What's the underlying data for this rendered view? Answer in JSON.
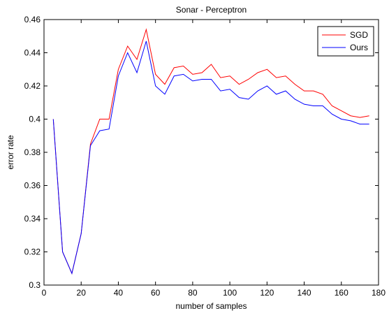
{
  "chart_data": {
    "type": "line",
    "title": "Sonar - Perceptron",
    "xlabel": "number of samples",
    "ylabel": "error rate",
    "xlim": [
      0,
      180
    ],
    "ylim": [
      0.3,
      0.46
    ],
    "xticks": [
      0,
      20,
      40,
      60,
      80,
      100,
      120,
      140,
      160,
      180
    ],
    "yticks": [
      0.3,
      0.32,
      0.34,
      0.36,
      0.38,
      0.4,
      0.42,
      0.44,
      0.46
    ],
    "ytick_labels": [
      "0.3",
      "0.32",
      "0.34",
      "0.36",
      "0.38",
      "0.4",
      "0.42",
      "0.44",
      "0.46"
    ],
    "grid": false,
    "legend_position": "top-right",
    "x": [
      5,
      10,
      15,
      20,
      25,
      30,
      35,
      40,
      45,
      50,
      55,
      60,
      65,
      70,
      75,
      80,
      85,
      90,
      95,
      100,
      105,
      110,
      115,
      120,
      125,
      130,
      135,
      140,
      145,
      150,
      155,
      160,
      165,
      170,
      175
    ],
    "series": [
      {
        "name": "SGD",
        "color": "#ff0000",
        "values": [
          0.4,
          0.32,
          0.307,
          0.331,
          0.385,
          0.4,
          0.4,
          0.43,
          0.444,
          0.436,
          0.454,
          0.427,
          0.421,
          0.431,
          0.432,
          0.427,
          0.428,
          0.433,
          0.425,
          0.426,
          0.421,
          0.424,
          0.428,
          0.43,
          0.425,
          0.426,
          0.421,
          0.417,
          0.417,
          0.415,
          0.408,
          0.405,
          0.402,
          0.401,
          0.402
        ]
      },
      {
        "name": "Ours",
        "color": "#0000ff",
        "values": [
          0.4,
          0.32,
          0.307,
          0.331,
          0.384,
          0.393,
          0.394,
          0.426,
          0.44,
          0.428,
          0.447,
          0.42,
          0.415,
          0.426,
          0.427,
          0.423,
          0.424,
          0.424,
          0.417,
          0.418,
          0.413,
          0.412,
          0.417,
          0.42,
          0.415,
          0.417,
          0.412,
          0.409,
          0.408,
          0.408,
          0.403,
          0.4,
          0.399,
          0.397,
          0.397
        ]
      }
    ]
  }
}
